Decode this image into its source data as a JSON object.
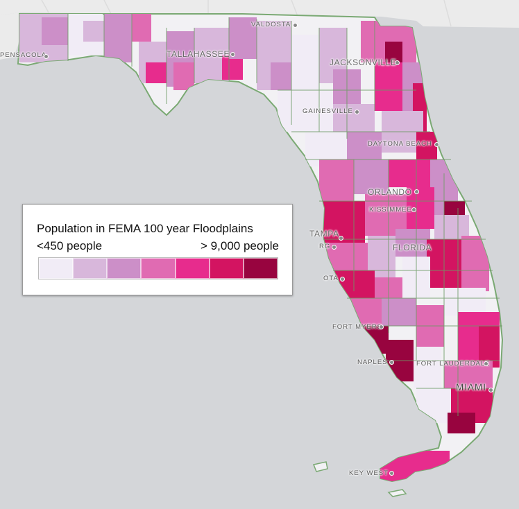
{
  "map": {
    "cities": [
      {
        "name": "VALDOSTA",
        "size": "small"
      },
      {
        "name": "PENSACOLA",
        "size": "small"
      },
      {
        "name": "TALLAHASSEE",
        "size": "big"
      },
      {
        "name": "JACKSONVILLE",
        "size": "big"
      },
      {
        "name": "GAINESVILLE",
        "size": "small"
      },
      {
        "name": "DAYTONA BEACH",
        "size": "small"
      },
      {
        "name": "ORLANDO",
        "size": "big"
      },
      {
        "name": "KISSIMMEE",
        "size": "small"
      },
      {
        "name": "TAMPA",
        "size": "big"
      },
      {
        "name": "FLORIDA",
        "size": "big"
      },
      {
        "name": "RG",
        "size": "small"
      },
      {
        "name": "OTA",
        "size": "small"
      },
      {
        "name": "FORT MYERS",
        "size": "small"
      },
      {
        "name": "NAPLES",
        "size": "small"
      },
      {
        "name": "FORT LAUDERDALE",
        "size": "small"
      },
      {
        "name": "MIAMI",
        "size": "huge"
      },
      {
        "name": "KEY WEST",
        "size": "small"
      }
    ]
  },
  "legend": {
    "title": "Population in FEMA 100 year Floodplains",
    "low_label": "<450 people",
    "high_label": "> 9,000 people",
    "colors": [
      "#f1ecf6",
      "#d8b7db",
      "#cc8fc8",
      "#e06bb2",
      "#e72c8d",
      "#d31461",
      "#98043f"
    ]
  },
  "colors": {
    "water": "#d4d6d9",
    "land": "#efefef",
    "state_border": "#6c9a64"
  }
}
